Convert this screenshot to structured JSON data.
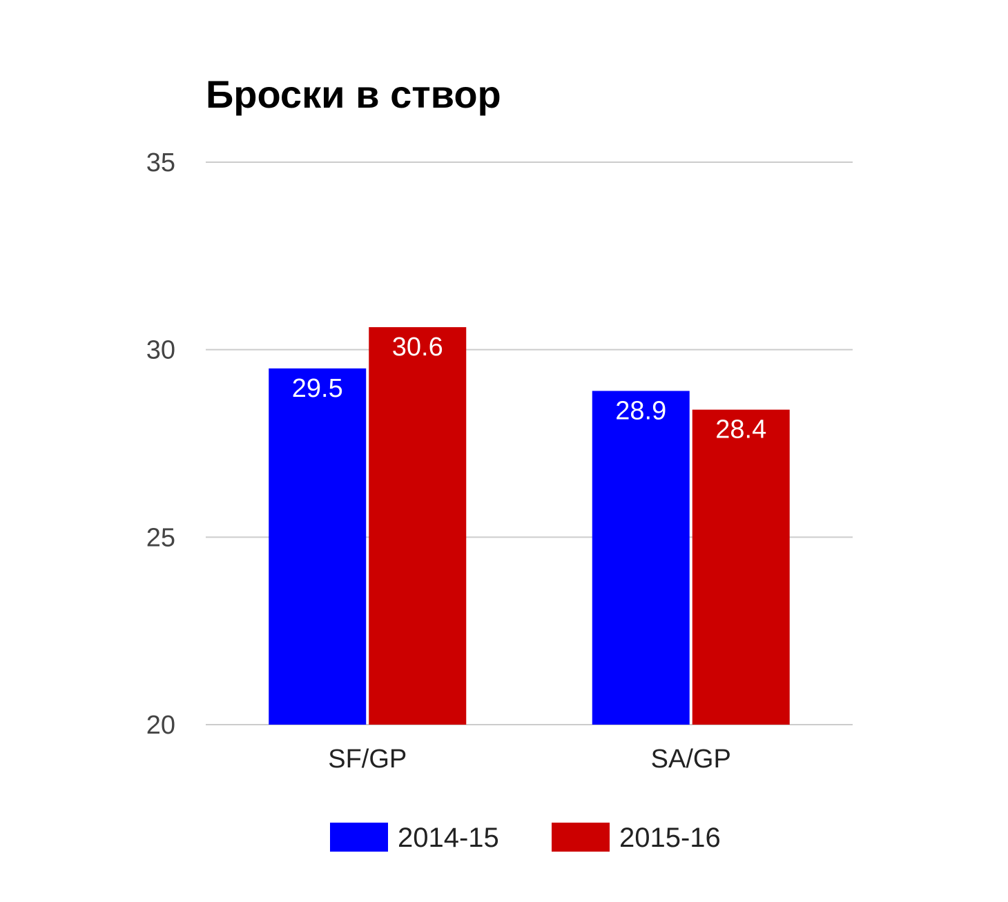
{
  "chart_data": {
    "type": "bar",
    "title": "Броски в створ",
    "xlabel": "",
    "ylabel": "",
    "categories": [
      "SF/GP",
      "SA/GP"
    ],
    "series": [
      {
        "name": "2014-15",
        "values": [
          29.5,
          28.9
        ],
        "color": "#0000ff"
      },
      {
        "name": "2015-16",
        "values": [
          30.6,
          28.4
        ],
        "color": "#cc0000"
      }
    ],
    "data_labels": [
      [
        "29.5",
        "28.9"
      ],
      [
        "30.6",
        "28.4"
      ]
    ],
    "ylim": [
      20,
      35
    ],
    "yticks": [
      20,
      25,
      30,
      35
    ],
    "ytick_labels": [
      "20",
      "25",
      "30",
      "35"
    ],
    "grid": true,
    "legend_position": "bottom"
  }
}
